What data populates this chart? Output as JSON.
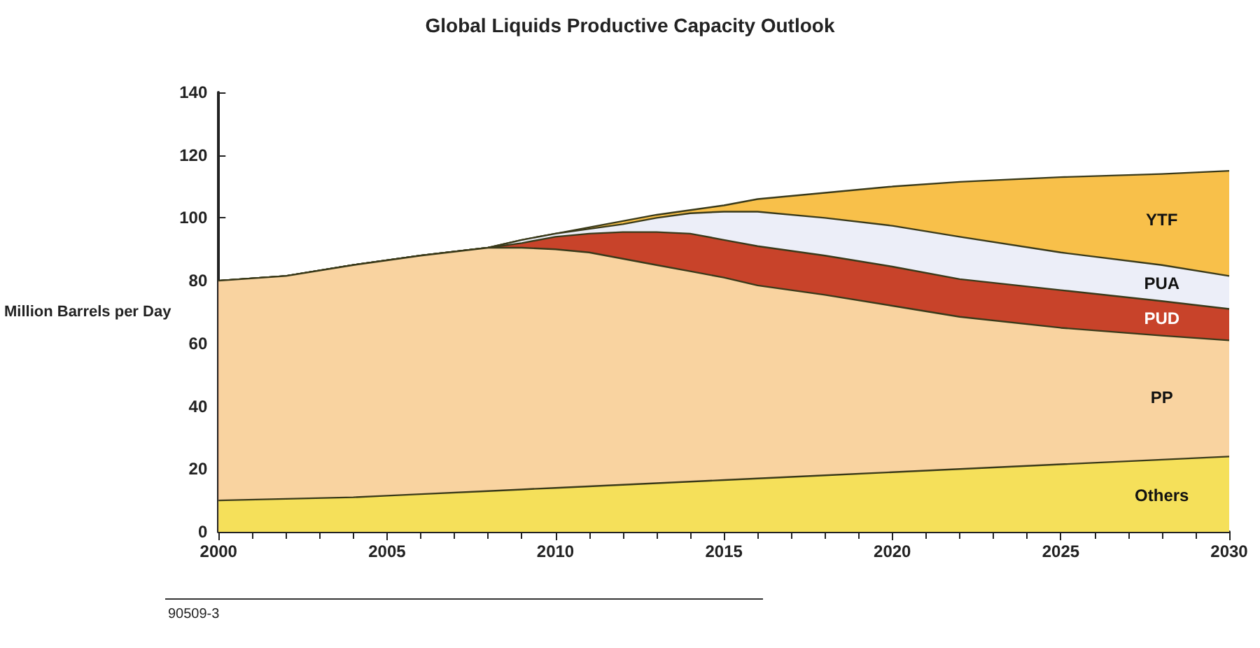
{
  "chart_data": {
    "type": "area",
    "title": "Global Liquids Productive Capacity Outlook",
    "ylabel": "Million Barrels per Day",
    "stacked": true,
    "marker": "none",
    "grid": false,
    "x": [
      2000,
      2002,
      2004,
      2005,
      2006,
      2008,
      2009,
      2010,
      2011,
      2012,
      2013,
      2014,
      2015,
      2016,
      2018,
      2020,
      2022,
      2025,
      2028,
      2030
    ],
    "series": [
      {
        "name": "Others",
        "color": "#f5e05a",
        "values": [
          10,
          10.5,
          11,
          11.5,
          12,
          13,
          13.5,
          14,
          14.5,
          15,
          15.5,
          16,
          16.5,
          17,
          18,
          19,
          20,
          21.5,
          23,
          24
        ]
      },
      {
        "name": "PP",
        "color": "#f9d3a0",
        "values": [
          70,
          71,
          74,
          75,
          76,
          77.5,
          77,
          76,
          74.5,
          72,
          69.5,
          67,
          64.5,
          61.5,
          57.5,
          53,
          48.5,
          43.5,
          39.5,
          37
        ]
      },
      {
        "name": "PUD",
        "color": "#c8432a",
        "values": [
          0,
          0,
          0,
          0,
          0,
          0,
          1.5,
          4,
          6,
          8.5,
          10.5,
          12,
          12,
          12.5,
          12.5,
          12.5,
          12,
          12,
          11,
          10
        ]
      },
      {
        "name": "PUA",
        "color": "#eceef8",
        "values": [
          0,
          0,
          0,
          0,
          0,
          0,
          1,
          1,
          1.5,
          2.5,
          4.5,
          6.5,
          9,
          11,
          12,
          13,
          13.5,
          12,
          11.5,
          10.5
        ]
      },
      {
        "name": "YTF",
        "color": "#f8c04a",
        "values": [
          0,
          0,
          0,
          0,
          0,
          0,
          0,
          0,
          0.5,
          1,
          1,
          1,
          2,
          4,
          8,
          12.5,
          17.5,
          24,
          29,
          33.5
        ]
      }
    ],
    "xlim": [
      2000,
      2030
    ],
    "xticks": [
      2000,
      2005,
      2010,
      2015,
      2020,
      2025,
      2030
    ],
    "ylim": [
      0,
      140
    ],
    "yticks": [
      0,
      20,
      40,
      60,
      80,
      100,
      120,
      140
    ],
    "annotations": [
      "90509-3"
    ]
  }
}
